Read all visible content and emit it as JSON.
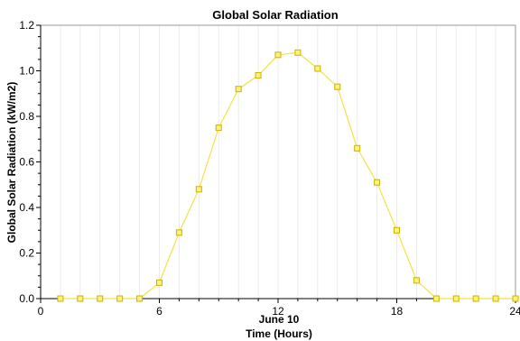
{
  "chart_data": {
    "type": "line",
    "title": "Global Solar Radiation",
    "xlabel": "Time (Hours)",
    "xlabel_date": "June 10",
    "ylabel": "Global Solar Radiation (kW/m2)",
    "xlim": [
      0,
      24
    ],
    "ylim": [
      0,
      1.2
    ],
    "x_ticks": [
      0,
      6,
      12,
      18,
      24
    ],
    "x_tick_labels": [
      "0",
      "6",
      "12",
      "18",
      "24"
    ],
    "y_ticks": [
      0,
      0.2,
      0.4,
      0.6,
      0.8,
      1.0,
      1.2
    ],
    "y_tick_labels": [
      "0.0",
      "0.2",
      "0.4",
      "0.6",
      "0.8",
      "1.0",
      "1.2"
    ],
    "grid": "vertical-minor",
    "legend": "none",
    "series_color": "#f2e24a",
    "marker_fill": "#fff07a",
    "marker_stroke": "#c8b400",
    "series": [
      {
        "x": [
          1,
          2,
          3,
          4,
          5,
          6,
          7,
          8,
          9,
          10,
          11,
          12,
          13,
          14,
          15,
          16,
          17,
          18,
          19,
          20,
          21,
          22,
          23,
          24
        ],
        "values": [
          0.0,
          0.0,
          0.0,
          0.0,
          0.0,
          0.07,
          0.29,
          0.48,
          0.75,
          0.92,
          0.98,
          1.07,
          1.08,
          1.01,
          0.93,
          0.66,
          0.51,
          0.3,
          0.08,
          0.0,
          0.0,
          0.0,
          0.0,
          0.0
        ]
      }
    ]
  }
}
